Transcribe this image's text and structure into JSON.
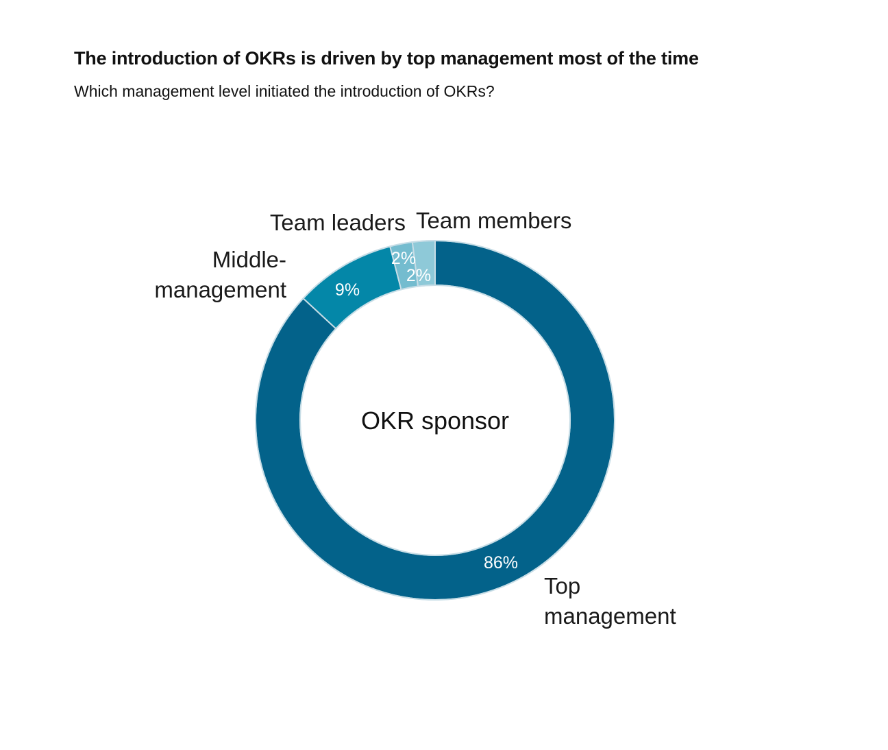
{
  "chart_data": {
    "type": "pie",
    "title": "The introduction of OKRs is driven by top management most of the time",
    "subtitle": "Which management level initiated the introduction of OKRs?",
    "center_label": "OKR sponsor",
    "categories": [
      "Top management",
      "Middle-management",
      "Team leaders",
      "Team members"
    ],
    "values": [
      86,
      9,
      2,
      2
    ],
    "value_labels": [
      "86%",
      "9%",
      "2%",
      "2%"
    ],
    "category_label_lines": [
      [
        "Top",
        "management"
      ],
      [
        "Middle-",
        "management"
      ],
      [
        "Team leaders"
      ],
      [
        "Team members"
      ]
    ],
    "colors": [
      "#03628a",
      "#0487a8",
      "#74bccf",
      "#8ec9d8"
    ],
    "separator_color": "#c7dde6",
    "style": "donut",
    "legend": "none"
  }
}
